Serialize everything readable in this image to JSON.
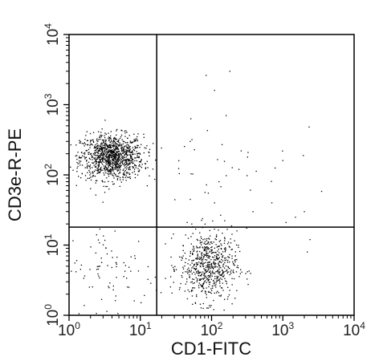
{
  "chart_data": {
    "type": "scatter",
    "title": "",
    "xlabel": "CD1-FITC",
    "ylabel": "CD3e-R-PE",
    "xscale": "log",
    "yscale": "log",
    "xlim": [
      1,
      10000
    ],
    "ylim": [
      1,
      10000
    ],
    "x_ticks": [
      {
        "base": "10",
        "exp": "0"
      },
      {
        "base": "10",
        "exp": "1"
      },
      {
        "base": "10",
        "exp": "2"
      },
      {
        "base": "10",
        "exp": "3"
      },
      {
        "base": "10",
        "exp": "4"
      }
    ],
    "y_ticks": [
      {
        "base": "10",
        "exp": "0"
      },
      {
        "base": "10",
        "exp": "1"
      },
      {
        "base": "10",
        "exp": "2"
      },
      {
        "base": "10",
        "exp": "3"
      },
      {
        "base": "10",
        "exp": "4"
      }
    ],
    "quadrant_gate": {
      "x": 17,
      "y": 18
    },
    "grid": false,
    "point_color": "#000000",
    "populations": [
      {
        "center": [
          4,
          180
        ],
        "count": 1100,
        "spread_log10": [
          0.22,
          0.16
        ]
      },
      {
        "center": [
          90,
          5
        ],
        "count": 650,
        "spread_log10": [
          0.2,
          0.25
        ]
      },
      {
        "center": [
          4,
          4
        ],
        "count": 90,
        "spread_log10": [
          0.35,
          0.35
        ]
      },
      {
        "center": [
          150,
          150
        ],
        "count": 35,
        "spread_log10": [
          0.5,
          0.5
        ]
      }
    ],
    "notable_points": [
      [
        180,
        3000
      ],
      [
        160,
        700
      ],
      [
        110,
        1600
      ],
      [
        140,
        270
      ],
      [
        50,
        300
      ],
      [
        260,
        220
      ],
      [
        380,
        30
      ],
      [
        700,
        40
      ],
      [
        2000,
        30
      ],
      [
        1500,
        25
      ],
      [
        2200,
        8
      ],
      [
        2400,
        12
      ],
      [
        110,
        40
      ],
      [
        90,
        55
      ],
      [
        320,
        180
      ],
      [
        1000,
        160
      ]
    ]
  }
}
